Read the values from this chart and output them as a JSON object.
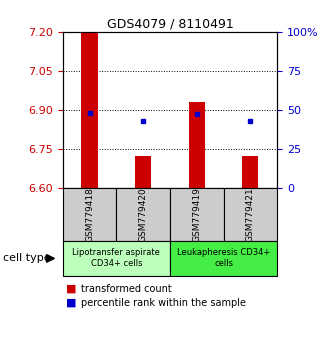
{
  "title": "GDS4079 / 8110491",
  "samples": [
    "GSM779418",
    "GSM779420",
    "GSM779419",
    "GSM779421"
  ],
  "transformed_counts": [
    7.2,
    6.72,
    6.93,
    6.72
  ],
  "percentile_ranks": [
    48,
    43,
    47,
    43
  ],
  "ylim": [
    6.6,
    7.2
  ],
  "yticks_left": [
    6.6,
    6.75,
    6.9,
    7.05,
    7.2
  ],
  "yticks_right": [
    0,
    25,
    50,
    75,
    100
  ],
  "bar_color": "#cc0000",
  "dot_color": "#0000cc",
  "bar_bottom": 6.6,
  "groups": [
    {
      "label": "Lipotransfer aspirate\nCD34+ cells",
      "color": "#bbffbb"
    },
    {
      "label": "Leukapheresis CD34+\ncells",
      "color": "#44ee44"
    }
  ],
  "legend_bar_label": "transformed count",
  "legend_dot_label": "percentile rank within the sample",
  "cell_type_label": "cell type",
  "xlabel_gray_bg": "#cccccc",
  "tick_color_left": "#cc0000",
  "tick_color_right": "#0000cc",
  "title_fontsize": 9,
  "tick_fontsize": 8,
  "sample_fontsize": 6.5,
  "group_fontsize": 6,
  "legend_fontsize": 7
}
